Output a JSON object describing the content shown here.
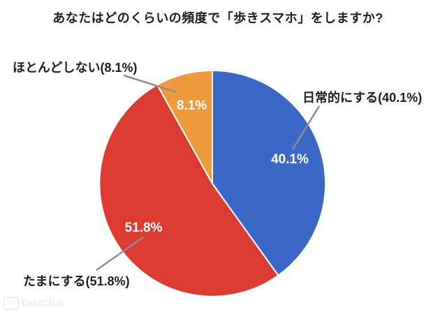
{
  "title": "あなたはどのくらいの頻度で「歩きスマホ」をしますか?",
  "watermark": {
    "logo": "DC",
    "text": "DietClub"
  },
  "chart_data": {
    "type": "pie",
    "title": "あなたはどのくらいの頻度で「歩きスマホ」をしますか?",
    "unit": "%",
    "direction": "clockwise",
    "start_angle_deg": 0,
    "legend_position": "external-callouts",
    "background": "#ffffff",
    "leader_line_color": "#8e8e8e",
    "slices": [
      {
        "label": "日常的にする",
        "value": 40.1,
        "color": "#3b68c6",
        "inner_label": "40.1%",
        "callout": "日常的にする(40.1%)"
      },
      {
        "label": "たまにする",
        "value": 51.8,
        "color": "#dc3b32",
        "inner_label": "51.8%",
        "callout": "たまにする(51.8%)"
      },
      {
        "label": "ほとんどしない",
        "value": 8.1,
        "color": "#ef9a3c",
        "inner_label": "8.1%",
        "callout": "ほとんどしない(8.1%)"
      }
    ]
  }
}
